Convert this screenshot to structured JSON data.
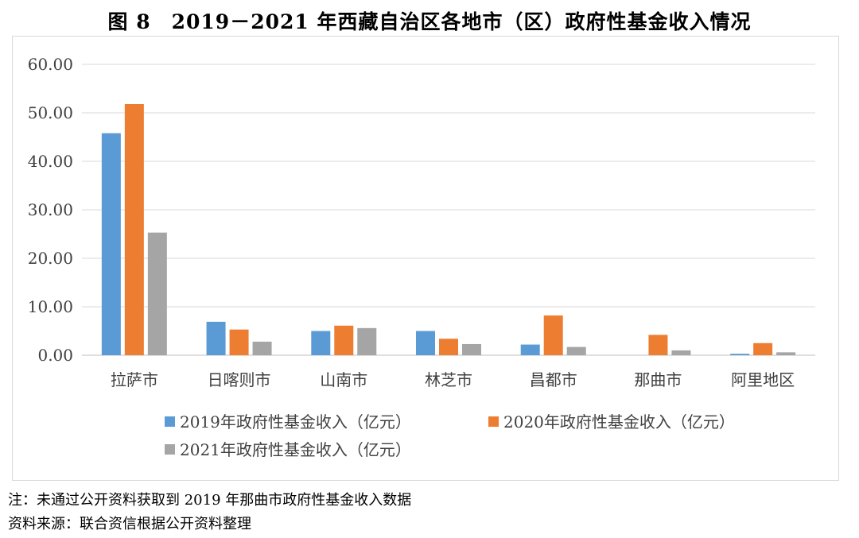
{
  "title": "图 8　2019－2021 年西藏自治区各地市（区）政府性基金收入情况",
  "notes": {
    "note": "注：未通过公开资料获取到 2019 年那曲市政府性基金收入数据",
    "source": "资料来源：联合资信根据公开资料整理"
  },
  "chart_data": {
    "type": "bar",
    "categories": [
      "拉萨市",
      "日喀则市",
      "山南市",
      "林芝市",
      "昌都市",
      "那曲市",
      "阿里地区"
    ],
    "series": [
      {
        "name": "2019年政府性基金收入（亿元）",
        "color": "#5b9bd5",
        "values": [
          45.8,
          6.9,
          5.0,
          5.0,
          2.2,
          null,
          0.3
        ]
      },
      {
        "name": "2020年政府性基金收入（亿元）",
        "color": "#ed7d31",
        "values": [
          51.8,
          5.3,
          6.1,
          3.4,
          8.2,
          4.2,
          2.5
        ]
      },
      {
        "name": "2021年政府性基金收入（亿元）",
        "color": "#a5a5a5",
        "values": [
          25.3,
          2.8,
          5.6,
          2.3,
          1.7,
          1.0,
          0.6
        ]
      }
    ],
    "ylim": [
      0,
      60
    ],
    "yticks": [
      "0.00",
      "10.00",
      "20.00",
      "30.00",
      "40.00",
      "50.00",
      "60.00"
    ],
    "grid": true,
    "legend": "bottom"
  }
}
